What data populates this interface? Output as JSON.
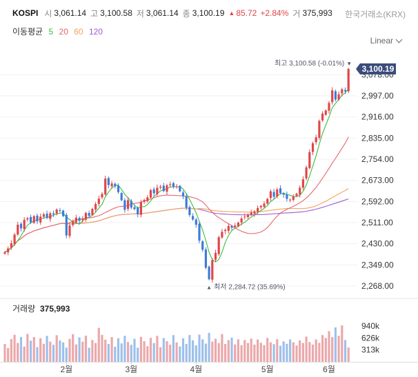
{
  "header": {
    "symbol": "KOSPI",
    "open_label": "시",
    "open": "3,061.14",
    "high_label": "고",
    "high": "3,100.58",
    "low_label": "저",
    "low": "3,061.14",
    "close_label": "종",
    "close": "3,100.19",
    "change_arrow": "▲",
    "change": "85.72",
    "change_pct": "+2.84%",
    "volume_label": "거",
    "volume": "375,993",
    "exchange": "한국거래소(KRX)"
  },
  "ma_legend": {
    "title": "이동평균",
    "items": [
      {
        "label": "5",
        "color": "#3dbb3d"
      },
      {
        "label": "20",
        "color": "#e8656d"
      },
      {
        "label": "60",
        "color": "#f4a25b"
      },
      {
        "label": "120",
        "color": "#9c5cd6"
      }
    ]
  },
  "scale_select": "Linear",
  "chart_data": {
    "type": "candlestick",
    "ylim": [
      2268,
      3100.19
    ],
    "y_ticks": [
      "3,078.00",
      "2,997.00",
      "2,916.00",
      "2,835.00",
      "2,754.00",
      "2,673.00",
      "2,592.00",
      "2,511.00",
      "2,430.00",
      "2,349.00",
      "2,268.00"
    ],
    "x_ticks": [
      {
        "label": "2월",
        "day": 19
      },
      {
        "label": "3월",
        "day": 39
      },
      {
        "label": "4월",
        "day": 59
      },
      {
        "label": "5월",
        "day": 81
      },
      {
        "label": "6월",
        "day": 100
      }
    ],
    "last_price_label": "3,100.19",
    "high_annotation": {
      "text": "최고 3,100.58 (-0.01%)",
      "arrow": "▼",
      "value": 3100.58
    },
    "low_annotation": {
      "text": "최저 2,284.72 (35.69%)",
      "arrow": "▲",
      "value": 2284.72
    },
    "up_color": "#e0464a",
    "down_color": "#3d7bd9",
    "closes": [
      2398,
      2412,
      2432,
      2465,
      2503,
      2489,
      2522,
      2528,
      2512,
      2536,
      2516,
      2534,
      2543,
      2529,
      2547,
      2543,
      2561,
      2556,
      2536,
      2462,
      2500,
      2516,
      2530,
      2518,
      2526,
      2548,
      2537,
      2564,
      2582,
      2603,
      2621,
      2680,
      2655,
      2661,
      2650,
      2628,
      2597,
      2560,
      2597,
      2569,
      2563,
      2543,
      2589,
      2598,
      2608,
      2636,
      2624,
      2645,
      2649,
      2632,
      2654,
      2658,
      2649,
      2650,
      2631,
      2612,
      2568,
      2540,
      2523,
      2503,
      2442,
      2407,
      2338,
      2294,
      2367,
      2395,
      2455,
      2476,
      2483,
      2498,
      2491,
      2500,
      2511,
      2527,
      2534,
      2540,
      2550,
      2554,
      2567,
      2575,
      2584,
      2602,
      2631,
      2610,
      2638,
      2624,
      2618,
      2602,
      2599,
      2611,
      2622,
      2645,
      2677,
      2723,
      2781,
      2815,
      2838,
      2901,
      2929,
      2941,
      2970,
      3018,
      2983,
      3003,
      3022,
      3014,
      3100.19
    ],
    "volume_panel": {
      "title": "거래량",
      "value": "375,993",
      "ylim": [
        0,
        1140000
      ],
      "ticks": [
        "940k",
        "626k",
        "313k"
      ],
      "values": [
        468000,
        362000,
        598000,
        712000,
        495000,
        654000,
        401000,
        734000,
        557000,
        652000,
        387000,
        621000,
        474000,
        682000,
        531000,
        448000,
        698000,
        561000,
        512000,
        374000,
        603000,
        727000,
        456000,
        642000,
        531000,
        685000,
        371000,
        573000,
        496000,
        892000,
        708000,
        582000,
        468000,
        651000,
        397000,
        621000,
        484000,
        684000,
        522000,
        447000,
        605000,
        373000,
        657000,
        541000,
        411000,
        628000,
        493000,
        683000,
        384000,
        624000,
        541000,
        451000,
        702000,
        508000,
        401000,
        618000,
        472000,
        703000,
        564000,
        432000,
        715000,
        592000,
        478000,
        762000,
        531000,
        605000,
        492000,
        729000,
        468000,
        568000,
        636000,
        456000,
        592000,
        438000,
        574000,
        496000,
        610000,
        452000,
        587000,
        502000,
        439000,
        628000,
        512000,
        465000,
        594000,
        421000,
        538000,
        472000,
        588000,
        512000,
        431000,
        562000,
        495000,
        664000,
        522000,
        452000,
        588000,
        501000,
        702000,
        628000,
        806000,
        651000,
        904000,
        682000,
        958000,
        572000,
        375993
      ]
    }
  }
}
